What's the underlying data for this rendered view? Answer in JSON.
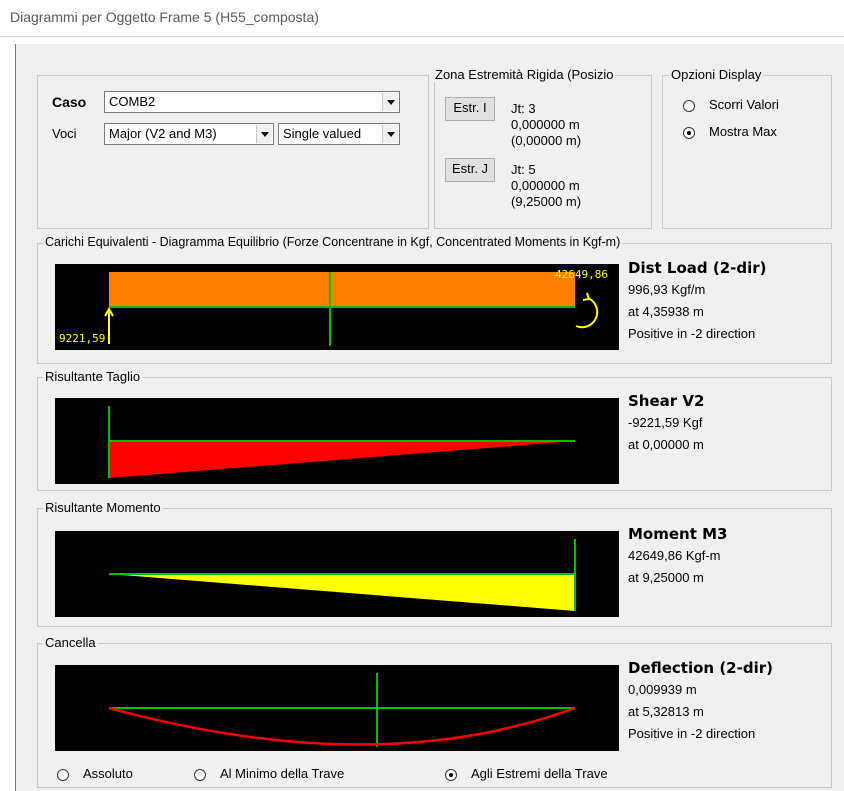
{
  "window": {
    "title": "Diagrammi per Oggetto Frame 5  (H55_composta)"
  },
  "case_panel": {
    "caso_label": "Caso",
    "caso_value": "COMB2",
    "voci_label": "Voci",
    "voci_value": "Major (V2 and M3)",
    "valued_value": "Single valued"
  },
  "rigid_zone": {
    "legend": "Zona Estremità Rigida (Posizio",
    "end_i": {
      "button": "Estr. I",
      "jt": "Jt:  3",
      "line1": "0,000000 m",
      "line2": "(0,00000 m)"
    },
    "end_j": {
      "button": "Estr. J",
      "jt": "Jt:  5",
      "line1": "0,000000 m",
      "line2": "(9,25000 m)"
    }
  },
  "display_options": {
    "legend": "Opzioni Display",
    "options": [
      {
        "label": "Scorri Valori",
        "selected": false
      },
      {
        "label": "Mostra Max",
        "selected": true
      }
    ]
  },
  "loads": {
    "legend": "Carichi Equivalenti - Diagramma Equilibrio (Forze Concentrane in Kgf, Concentrated Moments in Kgf-m)",
    "left_value": "9221,59",
    "right_value": "42649,86",
    "info_title": "Dist Load (2-dir)",
    "info_lines": [
      "996,93 Kgf/m",
      "at 4,35938 m",
      "Positive in -2 direction"
    ],
    "fill_color": "#ff8000"
  },
  "shear": {
    "legend": "Risultante Taglio",
    "info_title": "Shear V2",
    "info_lines": [
      "-9221,59 Kgf",
      "at 0,00000 m"
    ],
    "fill_color": "#ff0000"
  },
  "moment": {
    "legend": "Risultante Momento",
    "info_title": "Moment M3",
    "info_lines": [
      "42649,86 Kgf-m",
      "at 9,25000 m"
    ],
    "fill_color": "#ffff00"
  },
  "deflection": {
    "legend": "Cancella",
    "info_title": "Deflection (2-dir)",
    "info_lines": [
      "0,009939 m",
      "at 5,32813 m",
      "Positive in -2 direction"
    ],
    "line_color": "#ff0000",
    "options": [
      {
        "label": "Assoluto",
        "selected": false
      },
      {
        "label": "Al Minimo della Trave",
        "selected": false
      },
      {
        "label": "Agli Estremi della Trave",
        "selected": true
      }
    ]
  }
}
